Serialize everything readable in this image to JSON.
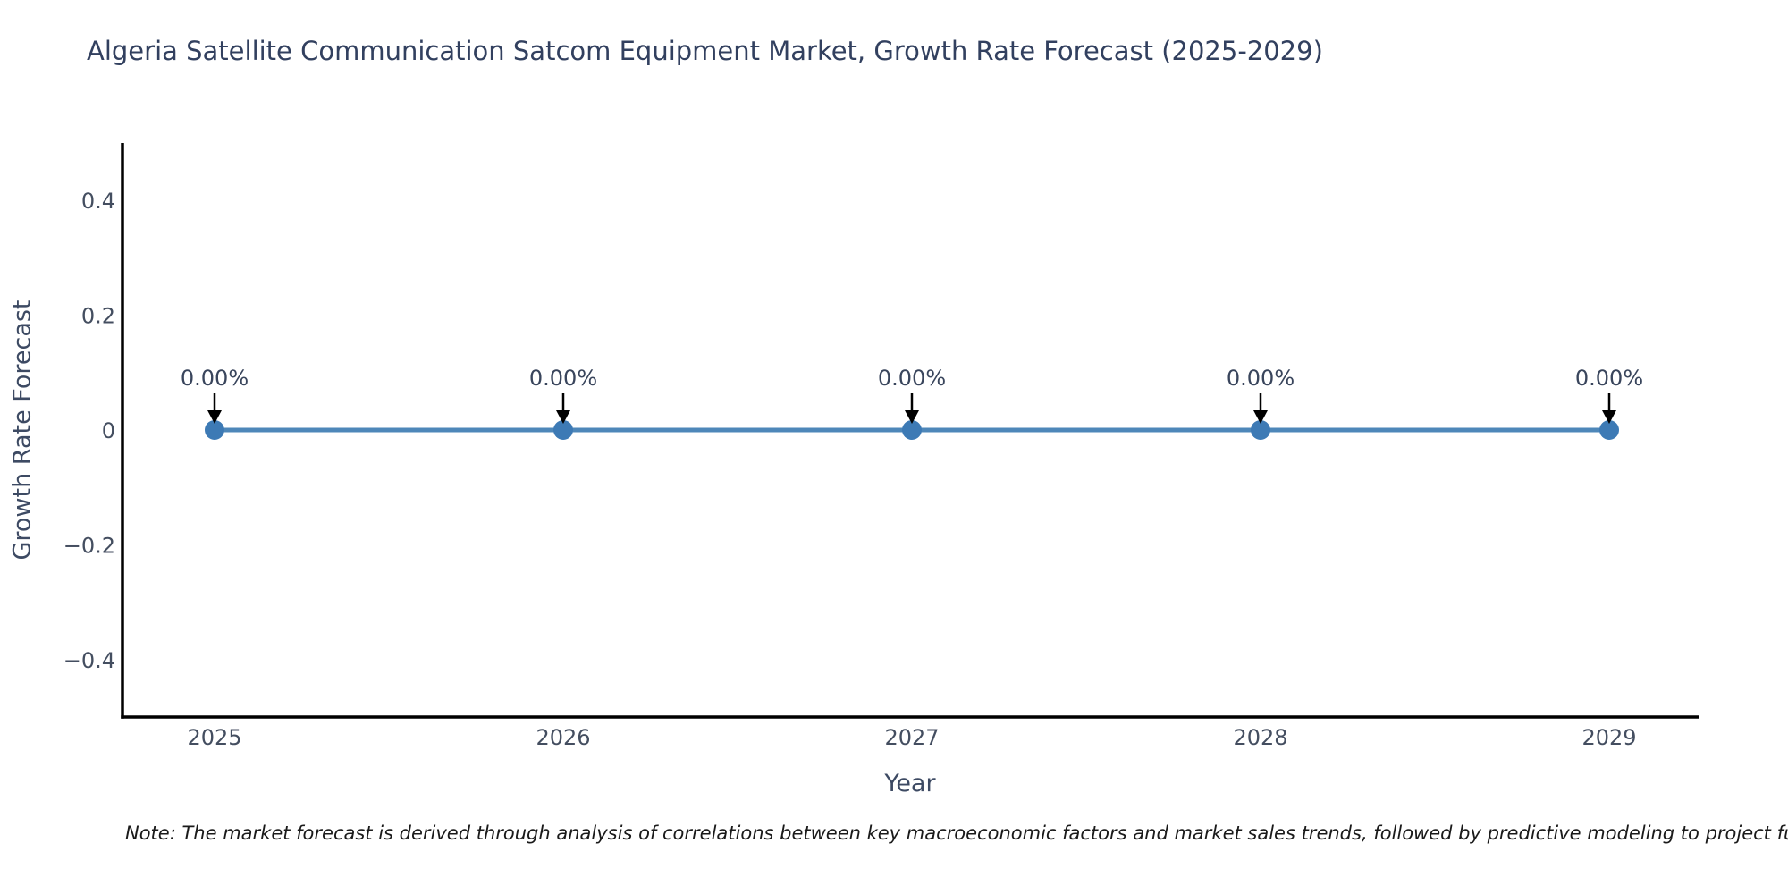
{
  "note": "Note: The market forecast is derived through analysis of correlations between key macroeconomic factors and market sales trends, followed by predictive modeling to project future sa",
  "chart_data": {
    "type": "line",
    "title": "Algeria Satellite Communication Satcom Equipment Market, Growth Rate Forecast (2025-2029)",
    "xlabel": "Year",
    "ylabel": "Growth Rate Forecast",
    "x": [
      "2025",
      "2026",
      "2027",
      "2028",
      "2029"
    ],
    "values": [
      0,
      0,
      0,
      0,
      0
    ],
    "point_labels": [
      "0.00%",
      "0.00%",
      "0.00%",
      "0.00%",
      "0.00%"
    ],
    "ylim": [
      -0.5,
      0.5
    ],
    "yticks": [
      -0.4,
      -0.2,
      0,
      0.2,
      0.4
    ],
    "ytick_labels": [
      "−0.4",
      "−0.2",
      "0",
      "0.2",
      "0.4"
    ],
    "xtick_labels": [
      "2025",
      "2026",
      "2027",
      "2028",
      "2029"
    ],
    "grid": false,
    "legend": "none",
    "colors": {
      "line": "#4e87b9",
      "marker": "#3d7ab5",
      "arrow": "#000000",
      "axis": "#000000",
      "tick_text": "#444e60",
      "annotation_text": "#39455c",
      "title_text": "#32405f",
      "note_text": "#1a1a1a"
    }
  }
}
